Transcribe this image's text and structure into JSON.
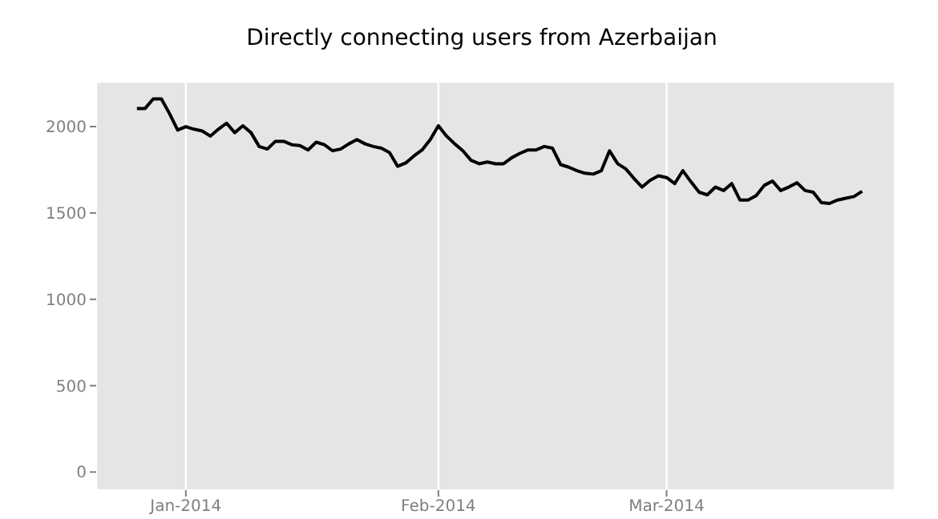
{
  "chart_data": {
    "type": "line",
    "title": "Directly connecting users from Azerbaijan",
    "x": [
      "2013-12-26",
      "2013-12-27",
      "2013-12-28",
      "2013-12-29",
      "2013-12-30",
      "2013-12-31",
      "2014-01-01",
      "2014-01-02",
      "2014-01-03",
      "2014-01-04",
      "2014-01-05",
      "2014-01-06",
      "2014-01-07",
      "2014-01-08",
      "2014-01-09",
      "2014-01-10",
      "2014-01-11",
      "2014-01-12",
      "2014-01-13",
      "2014-01-14",
      "2014-01-15",
      "2014-01-16",
      "2014-01-17",
      "2014-01-18",
      "2014-01-19",
      "2014-01-20",
      "2014-01-21",
      "2014-01-22",
      "2014-01-23",
      "2014-01-24",
      "2014-01-25",
      "2014-01-26",
      "2014-01-27",
      "2014-01-28",
      "2014-01-29",
      "2014-01-30",
      "2014-01-31",
      "2014-02-01",
      "2014-02-02",
      "2014-02-03",
      "2014-02-04",
      "2014-02-05",
      "2014-02-06",
      "2014-02-07",
      "2014-02-08",
      "2014-02-09",
      "2014-02-10",
      "2014-02-11",
      "2014-02-12",
      "2014-02-13",
      "2014-02-14",
      "2014-02-15",
      "2014-02-16",
      "2014-02-17",
      "2014-02-18",
      "2014-02-19",
      "2014-02-20",
      "2014-02-21",
      "2014-02-22",
      "2014-02-23",
      "2014-02-24",
      "2014-02-25",
      "2014-02-26",
      "2014-02-27",
      "2014-02-28",
      "2014-03-01",
      "2014-03-02",
      "2014-03-03",
      "2014-03-04",
      "2014-03-05",
      "2014-03-06",
      "2014-03-07",
      "2014-03-08",
      "2014-03-09",
      "2014-03-10",
      "2014-03-11",
      "2014-03-12",
      "2014-03-13",
      "2014-03-14",
      "2014-03-15",
      "2014-03-16",
      "2014-03-17",
      "2014-03-18",
      "2014-03-19",
      "2014-03-20",
      "2014-03-21",
      "2014-03-22",
      "2014-03-23",
      "2014-03-24",
      "2014-03-25"
    ],
    "series": [
      {
        "color": "#000000",
        "values": [
          2105,
          2105,
          2160,
          2160,
          2075,
          1980,
          2000,
          1985,
          1975,
          1945,
          1985,
          2020,
          1965,
          2005,
          1965,
          1885,
          1870,
          1915,
          1915,
          1895,
          1890,
          1865,
          1910,
          1895,
          1860,
          1870,
          1900,
          1925,
          1900,
          1885,
          1875,
          1850,
          1770,
          1790,
          1830,
          1865,
          1925,
          2005,
          1945,
          1900,
          1860,
          1805,
          1785,
          1795,
          1785,
          1785,
          1820,
          1845,
          1865,
          1865,
          1885,
          1875,
          1780,
          1765,
          1745,
          1730,
          1725,
          1745,
          1860,
          1785,
          1755,
          1700,
          1650,
          1690,
          1715,
          1705,
          1670,
          1745,
          1680,
          1620,
          1605,
          1650,
          1630,
          1670,
          1575,
          1575,
          1600,
          1660,
          1685,
          1630,
          1650,
          1675,
          1630,
          1620,
          1560,
          1555,
          1575,
          1585,
          1595,
          1625
        ]
      }
    ],
    "xlim": [
      "2013-12-21",
      "2014-03-29"
    ],
    "xticks": [
      {
        "value": "2014-01-01",
        "label": "Jan-2014"
      },
      {
        "value": "2014-02-01",
        "label": "Feb-2014"
      },
      {
        "value": "2014-03-01",
        "label": "Mar-2014"
      }
    ],
    "ylim": [
      -105,
      2260
    ],
    "yticks": [
      0,
      500,
      1000,
      1500,
      2000
    ],
    "grid": true,
    "legend": false,
    "marker": "none",
    "line_style": "solid"
  }
}
